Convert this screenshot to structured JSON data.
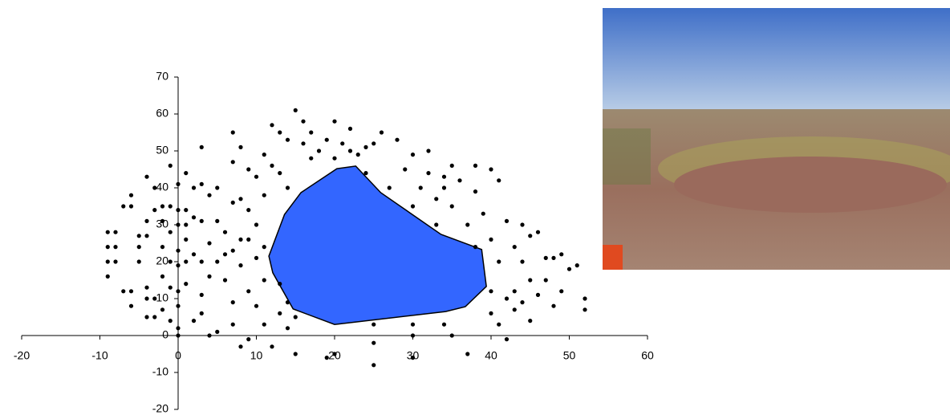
{
  "chart_data": {
    "type": "scatter",
    "xlim": [
      -20,
      60
    ],
    "xticks": [
      -20,
      -10,
      0,
      10,
      20,
      30,
      40,
      50,
      60
    ],
    "ylim": [
      -20,
      70
    ],
    "yticks": [
      -20,
      -10,
      0,
      10,
      20,
      30,
      40,
      50,
      60,
      70
    ],
    "series": [
      {
        "color": "#000000",
        "x": [
          -9,
          -8,
          -9,
          -8,
          -9,
          -8,
          -9,
          -7,
          -6,
          -6,
          -4,
          -3,
          -4,
          -3,
          -4,
          -5,
          -5,
          -5,
          -4,
          -4,
          -3,
          -2,
          -6,
          -7,
          -4,
          -6,
          -3,
          -1,
          -2,
          -1,
          -2,
          -1,
          -2,
          -1,
          -2,
          -1,
          0,
          0,
          0,
          0,
          0,
          0,
          0,
          0,
          0,
          -1,
          1,
          1,
          1,
          1,
          1,
          1,
          2,
          2,
          2,
          2,
          3,
          3,
          3,
          3,
          3,
          3,
          4,
          4,
          4,
          4,
          5,
          5,
          5,
          5,
          6,
          6,
          6,
          7,
          7,
          7,
          7,
          7,
          7,
          8,
          8,
          8,
          8,
          8,
          9,
          9,
          9,
          9,
          9,
          10,
          10,
          10,
          10,
          11,
          11,
          11,
          11,
          11,
          12,
          12,
          12,
          13,
          13,
          13,
          13,
          14,
          14,
          14,
          14,
          15,
          15,
          15,
          16,
          16,
          17,
          17,
          18,
          19,
          20,
          20,
          19,
          20,
          21,
          22,
          22,
          23,
          24,
          24,
          25,
          25,
          25,
          25,
          26,
          27,
          28,
          29,
          30,
          30,
          30,
          30,
          30,
          31,
          32,
          32,
          33,
          33,
          34,
          34,
          34,
          35,
          35,
          35,
          36,
          37,
          37,
          38,
          38,
          38,
          39,
          40,
          40,
          40,
          40,
          41,
          41,
          41,
          42,
          42,
          42,
          43,
          43,
          43,
          44,
          44,
          44,
          45,
          45,
          45,
          46,
          46,
          47,
          47,
          48,
          48,
          49,
          49,
          50,
          51,
          52,
          52
        ],
        "values": [
          28,
          28,
          24,
          24,
          20,
          20,
          16,
          12,
          12,
          8,
          5,
          5,
          10,
          10,
          13,
          20,
          24,
          27,
          27,
          31,
          34,
          35,
          35,
          35,
          43,
          38,
          40,
          35,
          31,
          28,
          24,
          20,
          16,
          13,
          7,
          4,
          0,
          2,
          8,
          12,
          19,
          23,
          30,
          34,
          41,
          46,
          44,
          34,
          30,
          26,
          20,
          14,
          40,
          32,
          22,
          4,
          51,
          41,
          31,
          20,
          11,
          6,
          38,
          25,
          16,
          0,
          40,
          31,
          20,
          1,
          28,
          22,
          15,
          55,
          47,
          36,
          23,
          9,
          3,
          51,
          37,
          26,
          19,
          -3,
          45,
          34,
          26,
          12,
          -1,
          43,
          30,
          21,
          8,
          49,
          38,
          24,
          15,
          3,
          57,
          46,
          -3,
          55,
          44,
          14,
          6,
          53,
          40,
          9,
          2,
          61,
          5,
          -5,
          58,
          52,
          55,
          48,
          50,
          53,
          58,
          48,
          -6,
          -5,
          52,
          50,
          56,
          49,
          51,
          44,
          52,
          3,
          -2,
          -8,
          55,
          40,
          53,
          45,
          49,
          35,
          3,
          0,
          -6,
          40,
          50,
          44,
          37,
          30,
          43,
          40,
          3,
          46,
          35,
          0,
          42,
          30,
          -5,
          46,
          39,
          24,
          33,
          45,
          26,
          12,
          6,
          42,
          20,
          3,
          -1,
          31,
          10,
          24,
          12,
          7,
          30,
          20,
          9,
          27,
          15,
          4,
          28,
          11,
          21,
          15,
          21,
          8,
          22,
          12,
          18,
          19,
          10,
          7
        ]
      },
      {
        "color": "#3366ff",
        "shape": "polygon",
        "x": [
          20.3,
          22.7,
          25.9,
          33.6,
          38.8,
          39.4,
          36.7,
          34.2,
          20.0,
          14.7,
          12.1,
          11.6,
          13.6,
          15.7
        ],
        "values": [
          45.2,
          45.9,
          38.7,
          27.4,
          23.3,
          13.3,
          7.8,
          6.5,
          3.0,
          7.2,
          17.0,
          21.5,
          32.8,
          38.7
        ]
      }
    ]
  }
}
